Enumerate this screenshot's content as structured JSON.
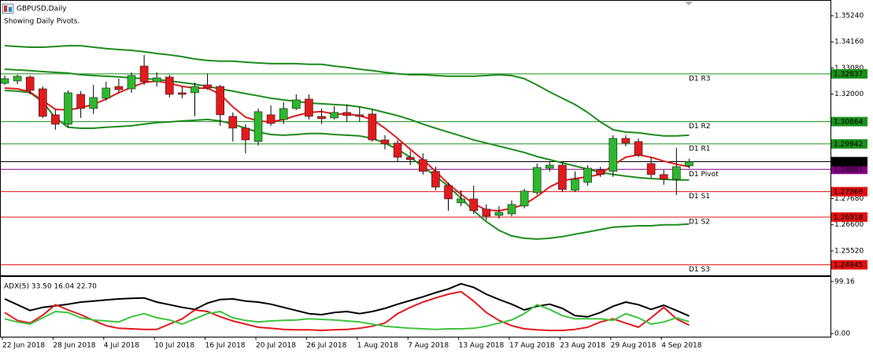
{
  "header": {
    "title": "GBPUSD,Daily",
    "subtitle": "Showing Daily Pivots."
  },
  "chart_data": [
    {
      "type": "candlestick",
      "categories": [
        "22 Jun 2018",
        null,
        null,
        null,
        "28 Jun 2018",
        null,
        null,
        null,
        "4 Jul 2018",
        null,
        null,
        null,
        "10 Jul 2018",
        null,
        null,
        null,
        "16 Jul 2018",
        null,
        null,
        null,
        "20 Jul 2018",
        null,
        null,
        null,
        "26 Jul 2018",
        null,
        null,
        null,
        "1 Aug 2018",
        null,
        null,
        null,
        "7 Aug 2018",
        null,
        null,
        null,
        "13 Aug 2018",
        null,
        null,
        null,
        "17 Aug 2018",
        null,
        null,
        null,
        "23 Aug 2018",
        null,
        null,
        null,
        "29 Aug 2018",
        null,
        null,
        null,
        "4 Sep 2018",
        null,
        null
      ],
      "open": [
        1.32445,
        1.32543,
        1.32705,
        1.32218,
        1.31145,
        1.30755,
        1.3199,
        1.31405,
        1.31828,
        1.32315,
        1.32218,
        1.3316,
        1.3251,
        1.32705,
        1.32055,
        1.32055,
        1.3238,
        1.32315,
        1.3108,
        1.30593,
        1.3004,
        1.31145,
        1.3095,
        1.31405,
        1.31795,
        1.3108,
        1.31015,
        1.31243,
        1.31145,
        1.31178,
        1.30105,
        1.29975,
        1.2939,
        1.29293,
        1.28805,
        1.2822,
        1.27505,
        1.27668,
        1.27245,
        1.26985,
        1.2705,
        1.27375,
        1.27928,
        1.28935,
        1.29065,
        1.28025,
        1.2835,
        1.2887,
        1.28805,
        1.3017,
        1.3004,
        1.2913,
        1.28675,
        1.2848,
        1.29033
      ],
      "high": [
        1.3277,
        1.32803,
        1.3277,
        1.32315,
        1.3134,
        1.32153,
        1.3212,
        1.3238,
        1.3251,
        1.3264,
        1.329,
        1.33615,
        1.329,
        1.32803,
        1.32315,
        1.32478,
        1.32835,
        1.3238,
        1.31243,
        1.30755,
        1.31405,
        1.31535,
        1.31665,
        1.3199,
        1.3199,
        1.31405,
        1.31503,
        1.31568,
        1.3147,
        1.3134,
        1.303,
        1.30105,
        1.2965,
        1.29553,
        1.29,
        1.2835,
        1.28025,
        1.2822,
        1.2744,
        1.27375,
        1.27603,
        1.2809,
        1.2913,
        1.29228,
        1.29195,
        1.28805,
        1.29065,
        1.29,
        1.303,
        1.303,
        1.3017,
        1.2939,
        1.2887,
        1.2978,
        1.29325
      ],
      "low": [
        1.3238,
        1.32413,
        1.3199,
        1.31015,
        1.30528,
        1.30625,
        1.31015,
        1.31178,
        1.3173,
        1.32055,
        1.32055,
        1.3238,
        1.32315,
        1.3186,
        1.31828,
        1.3108,
        1.32185,
        1.3069,
        1.3004,
        1.29553,
        1.29878,
        1.3069,
        1.30755,
        1.3134,
        1.3095,
        1.30755,
        1.3095,
        1.30853,
        1.30853,
        1.3004,
        1.29715,
        1.29228,
        1.29065,
        1.28675,
        1.28025,
        1.2718,
        1.27375,
        1.2705,
        1.2679,
        1.26855,
        1.26953,
        1.27278,
        1.2783,
        1.28805,
        1.2796,
        1.2796,
        1.2822,
        1.28578,
        1.28578,
        1.29845,
        1.2939,
        1.28545,
        1.28253,
        1.2783,
        1.28935
      ],
      "close": [
        1.3264,
        1.32738,
        1.32153,
        1.3108,
        1.30755,
        1.32055,
        1.31405,
        1.3186,
        1.3225,
        1.32185,
        1.3277,
        1.3251,
        1.32673,
        1.3199,
        1.3199,
        1.32315,
        1.3225,
        1.31145,
        1.30593,
        1.30105,
        1.31275,
        1.30788,
        1.31405,
        1.31763,
        1.3108,
        1.30983,
        1.31243,
        1.31113,
        1.3108,
        1.30105,
        1.29943,
        1.2939,
        1.29293,
        1.28805,
        1.28155,
        1.27668,
        1.27668,
        1.2718,
        1.26953,
        1.27115,
        1.2744,
        1.27993,
        1.28968,
        1.29065,
        1.28058,
        1.2848,
        1.28935,
        1.28675,
        1.3017,
        1.29975,
        1.29488,
        1.28675,
        1.2848,
        1.29,
        1.29209
      ],
      "up_color": "#2db82d",
      "down_color": "#e31a1c",
      "wick_color": "#000000",
      "price_line_color": "#000000",
      "ylim": [
        1.2451,
        1.3589
      ],
      "yticks": [
        {
          "value": 1.3524,
          "label": "1.35240"
        },
        {
          "value": 1.3416,
          "label": "1.34160"
        },
        {
          "value": 1.3308,
          "label": "1.33080"
        },
        {
          "value": 1.32,
          "label": "1.32000"
        },
        {
          "value": 1.2768,
          "label": "1.27680"
        },
        {
          "value": 1.266,
          "label": "1.26600"
        },
        {
          "value": 1.2552,
          "label": "1.25520"
        }
      ],
      "grid": false,
      "overlays": [
        {
          "color": "#1e8c1e",
          "values": [
            1.34,
            1.3397,
            1.3394,
            1.3394,
            1.3397,
            1.34,
            1.34,
            1.3394,
            1.3388,
            1.3384,
            1.3381,
            1.3375,
            1.3368,
            1.3362,
            1.3355,
            1.3345,
            1.3339,
            1.3336,
            1.3336,
            1.3332,
            1.3329,
            1.3326,
            1.3326,
            1.3326,
            1.3323,
            1.3323,
            1.3316,
            1.331,
            1.3303,
            1.3297,
            1.329,
            1.3284,
            1.328,
            1.328,
            1.3277,
            1.3274,
            1.3274,
            1.3274,
            1.3277,
            1.328,
            1.3277,
            1.3264,
            1.3238,
            1.3209,
            1.3183,
            1.3157,
            1.3124,
            1.3085,
            1.3053,
            1.3043,
            1.304,
            1.3033,
            1.3027,
            1.3027,
            1.303
          ]
        },
        {
          "color": "#1e8c1e",
          "values": [
            1.3303,
            1.33,
            1.3297,
            1.3293,
            1.329,
            1.3287,
            1.328,
            1.3277,
            1.3274,
            1.3271,
            1.3267,
            1.3264,
            1.3261,
            1.3254,
            1.3248,
            1.3241,
            1.3232,
            1.3222,
            1.3212,
            1.3202,
            1.3193,
            1.3183,
            1.3176,
            1.317,
            1.3163,
            1.316,
            1.3157,
            1.3154,
            1.3147,
            1.3137,
            1.3124,
            1.3111,
            1.3095,
            1.3076,
            1.3059,
            1.3043,
            1.3027,
            1.3011,
            1.2998,
            1.2985,
            1.2972,
            1.2959,
            1.2942,
            1.2929,
            1.2916,
            1.2903,
            1.289,
            1.2877,
            1.2868,
            1.2861,
            1.2855,
            1.2851,
            1.2848,
            1.2845,
            1.2845
          ]
        },
        {
          "color": "#1e8c1e",
          "values": [
            1.3215,
            1.3212,
            1.3206,
            1.3167,
            1.3102,
            1.3063,
            1.3059,
            1.3059,
            1.3063,
            1.3066,
            1.3069,
            1.3076,
            1.3082,
            1.3085,
            1.3089,
            1.3092,
            1.3095,
            1.3089,
            1.3076,
            1.3059,
            1.3043,
            1.3033,
            1.303,
            1.3033,
            1.3037,
            1.3037,
            1.3033,
            1.303,
            1.3027,
            1.3017,
            1.2998,
            1.2972,
            1.2939,
            1.29,
            1.2861,
            1.2819,
            1.277,
            1.2718,
            1.2673,
            1.2637,
            1.2614,
            1.2604,
            1.2601,
            1.2604,
            1.2611,
            1.2621,
            1.263,
            1.264,
            1.265,
            1.2653,
            1.2656,
            1.2656,
            1.266,
            1.266,
            1.2663
          ]
        },
        {
          "color": "#e31a1c",
          "values": [
            1.3225,
            1.3222,
            1.3209,
            1.3173,
            1.3137,
            1.3134,
            1.3144,
            1.3157,
            1.318,
            1.3206,
            1.3228,
            1.3248,
            1.3254,
            1.3245,
            1.3232,
            1.3225,
            1.3225,
            1.3199,
            1.3147,
            1.3105,
            1.3089,
            1.3085,
            1.3095,
            1.3111,
            1.3124,
            1.3128,
            1.3118,
            1.3118,
            1.3111,
            1.3095,
            1.3059,
            1.3017,
            1.2972,
            1.2929,
            1.2881,
            1.2829,
            1.2786,
            1.2747,
            1.2721,
            1.2718,
            1.2728,
            1.2744,
            1.2777,
            1.2816,
            1.2842,
            1.2851,
            1.2858,
            1.2868,
            1.2907,
            1.2939,
            1.2949,
            1.2939,
            1.2923,
            1.291,
            1.29
          ]
        }
      ],
      "levels": [
        {
          "label": "D1 R3",
          "value": 1.32837,
          "color": "#1a8f1a"
        },
        {
          "label": "D1 R2",
          "value": 1.30864,
          "color": "#1a8f1a"
        },
        {
          "label": "D1 R1",
          "value": 1.29942,
          "color": "#1a8f1a"
        },
        {
          "label": "D1 Pivot",
          "value": 1.28891,
          "color": "#800080"
        },
        {
          "label": "D1 S1",
          "value": 1.27969,
          "color": "#e01010"
        },
        {
          "label": "D1 S2",
          "value": 1.26918,
          "color": "#e01010"
        },
        {
          "label": "D1 S3",
          "value": 1.24945,
          "color": "#e01010"
        }
      ]
    },
    {
      "type": "line",
      "title": "ADX(5) 33.50 16.04 22.70",
      "ylim": [
        -6,
        109.5
      ],
      "yticks": [
        99.16,
        {
          "value": 0,
          "label": "0.00"
        }
      ],
      "series": [
        {
          "color": "#000000",
          "values": [
            66,
            55,
            44,
            50,
            53,
            56,
            60,
            62,
            64,
            66,
            67,
            68,
            60,
            55,
            50,
            46,
            58,
            65,
            66,
            62,
            60,
            56,
            50,
            44,
            38,
            36,
            40,
            42,
            38,
            42,
            48,
            56,
            63,
            70,
            78,
            85,
            95,
            88,
            75,
            65,
            56,
            45,
            52,
            56,
            48,
            34,
            32,
            40,
            52,
            60,
            55,
            46,
            54,
            44,
            33.5
          ]
        },
        {
          "color": "#e31a1c",
          "values": [
            40,
            25,
            20,
            35,
            55,
            45,
            36,
            25,
            15,
            10,
            9,
            8,
            8,
            18,
            28,
            45,
            42,
            32,
            24,
            18,
            12,
            10,
            8,
            7,
            7,
            6,
            7,
            8,
            10,
            14,
            20,
            38,
            50,
            60,
            68,
            75,
            80,
            62,
            40,
            25,
            15,
            9,
            7,
            6,
            6,
            8,
            12,
            22,
            28,
            20,
            12,
            30,
            50,
            28,
            16.04
          ]
        },
        {
          "color": "#3fc43f",
          "values": [
            28,
            22,
            18,
            30,
            42,
            40,
            30,
            26,
            24,
            22,
            32,
            38,
            30,
            26,
            18,
            28,
            38,
            42,
            30,
            25,
            22,
            24,
            25,
            26,
            28,
            27,
            26,
            24,
            22,
            18,
            14,
            12,
            10,
            9,
            8,
            9,
            9,
            10,
            14,
            20,
            26,
            38,
            55,
            46,
            34,
            28,
            28,
            28,
            25,
            38,
            30,
            18,
            22,
            30,
            22.7
          ]
        }
      ]
    }
  ]
}
